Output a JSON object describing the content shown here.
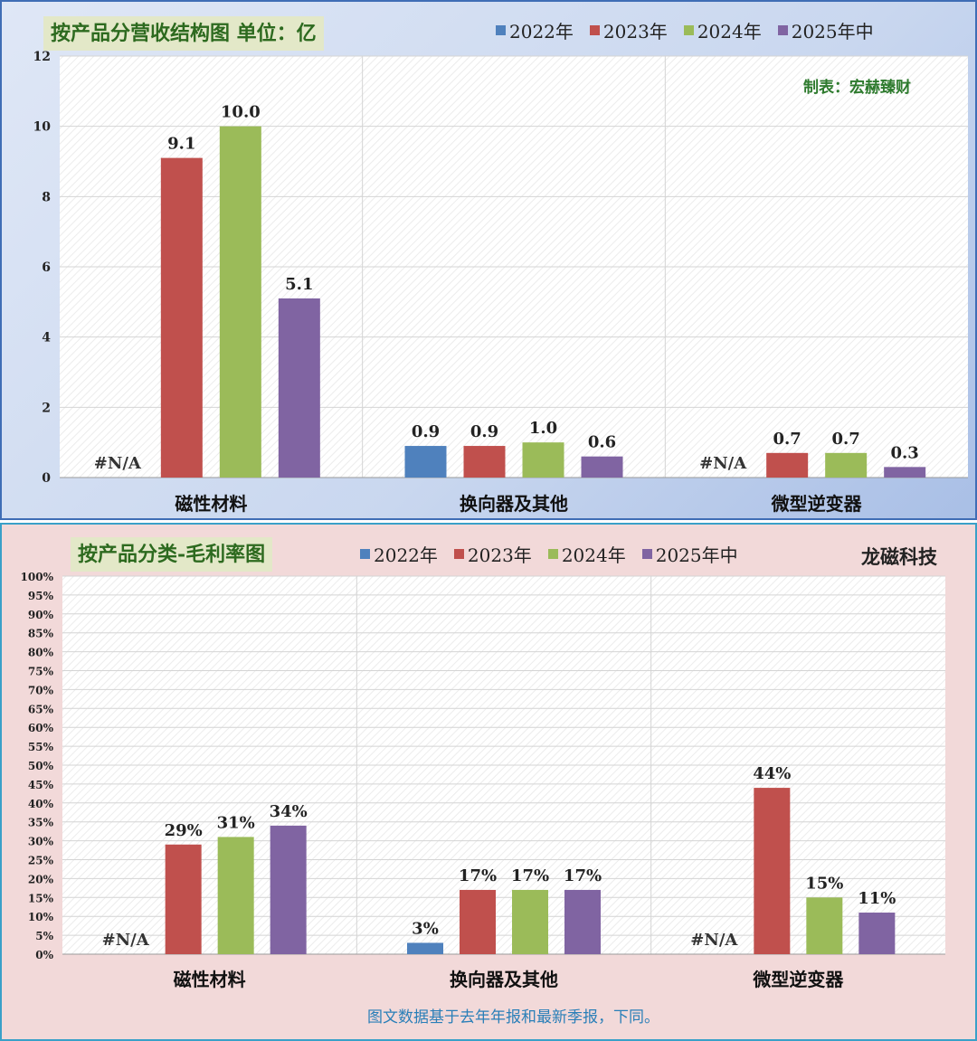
{
  "chart_data": [
    {
      "type": "bar",
      "title": "按产品分营收结构图 单位：亿",
      "maker": "制表：宏赫臻财",
      "categories": [
        "磁性材料",
        "换向器及其他",
        "微型逆变器"
      ],
      "series": [
        {
          "name": "2022年",
          "color": "#4f81bd",
          "values": [
            null,
            0.9,
            null
          ],
          "labels": [
            "#N/A",
            "0.9",
            "#N/A"
          ]
        },
        {
          "name": "2023年",
          "color": "#c0504d",
          "values": [
            9.1,
            0.9,
            0.7
          ],
          "labels": [
            "9.1",
            "0.9",
            "0.7"
          ]
        },
        {
          "name": "2024年",
          "color": "#9bbb59",
          "values": [
            10.0,
            1.0,
            0.7
          ],
          "labels": [
            "10.0",
            "1.0",
            "0.7"
          ]
        },
        {
          "name": "2025年中",
          "color": "#8064a2",
          "values": [
            5.1,
            0.6,
            0.3
          ],
          "labels": [
            "5.1",
            "0.6",
            "0.3"
          ]
        }
      ],
      "ylim": [
        0,
        12
      ],
      "yticks": [
        "0",
        "2",
        "4",
        "6",
        "8",
        "10",
        "12"
      ],
      "grid": true,
      "legend": "top"
    },
    {
      "type": "bar",
      "title": "按产品分类-毛利率图",
      "brand": "龙磁科技",
      "categories": [
        "磁性材料",
        "换向器及其他",
        "微型逆变器"
      ],
      "series": [
        {
          "name": "2022年",
          "color": "#4f81bd",
          "values": [
            null,
            3,
            null
          ],
          "labels": [
            "#N/A",
            "3%",
            "#N/A"
          ]
        },
        {
          "name": "2023年",
          "color": "#c0504d",
          "values": [
            29,
            17,
            44
          ],
          "labels": [
            "29%",
            "17%",
            "44%"
          ]
        },
        {
          "name": "2024年",
          "color": "#9bbb59",
          "values": [
            31,
            17,
            15
          ],
          "labels": [
            "31%",
            "17%",
            "15%"
          ]
        },
        {
          "name": "2025年中",
          "color": "#8064a2",
          "values": [
            34,
            17,
            11
          ],
          "labels": [
            "34%",
            "17%",
            "11%"
          ]
        }
      ],
      "ylim": [
        0,
        100
      ],
      "yticks": [
        "0%",
        "5%",
        "10%",
        "15%",
        "20%",
        "25%",
        "30%",
        "35%",
        "40%",
        "45%",
        "50%",
        "55%",
        "60%",
        "65%",
        "70%",
        "75%",
        "80%",
        "85%",
        "90%",
        "95%",
        "100%"
      ],
      "grid": true,
      "legend": "top",
      "footnote": "图文数据基于去年年报和最新季报，下同。"
    }
  ]
}
